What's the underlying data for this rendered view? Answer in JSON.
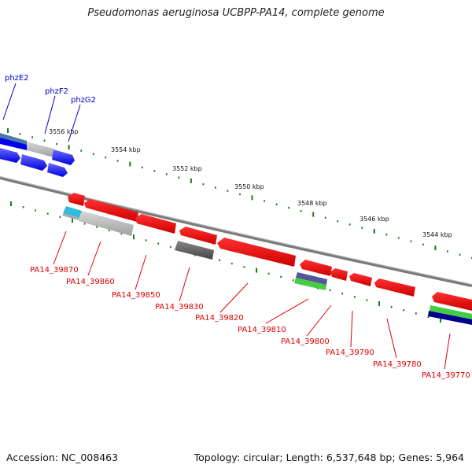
{
  "title": "Pseudomonas aeruginosa UCBPP-PA14, complete genome",
  "footer": {
    "accession": "Accession: NC_008463",
    "topology": "Topology: circular; Length: 6,537,648 bp; Genes: 5,964"
  },
  "scale_labels": [
    "3556 kbp",
    "3554 kbp",
    "3552 kbp",
    "3550 kbp",
    "3548 kbp",
    "3546 kbp",
    "3544 kbp"
  ],
  "genes_top": [
    "phzE2",
    "phzF2",
    "phzG2"
  ],
  "genes_bottom": [
    "PA14_39870",
    "PA14_39860",
    "PA14_39850",
    "PA14_39830",
    "PA14_39820",
    "PA14_39810",
    "PA14_39800",
    "PA14_39790",
    "PA14_39780",
    "PA14_39770"
  ],
  "colors": {
    "forward_gene": "#0000ff",
    "reverse_gene": "#ee0000",
    "backbone": "#888888",
    "tick": "#1a7a1a"
  }
}
